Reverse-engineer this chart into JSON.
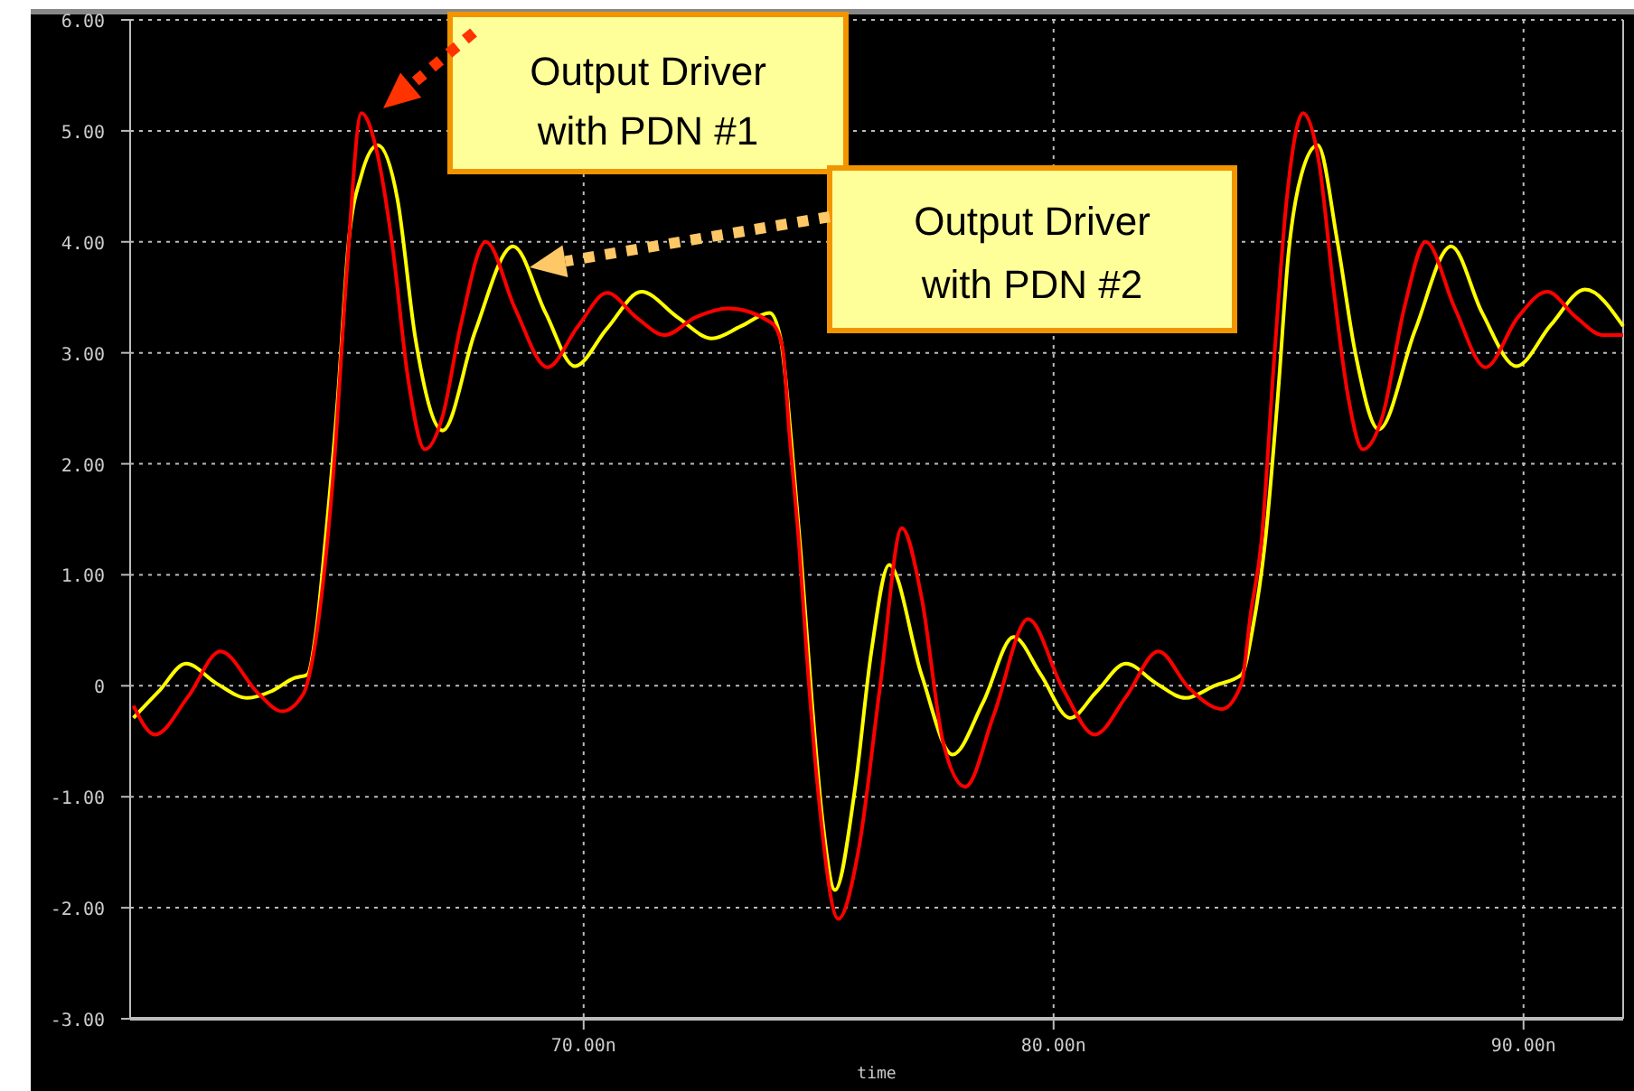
{
  "chart_data": {
    "type": "line",
    "xlabel": "time",
    "xlim": [
      60.35,
      92.12
    ],
    "ylim": [
      -3,
      6
    ],
    "xticks": [
      {
        "value": 70,
        "label": "70.00n"
      },
      {
        "value": 80,
        "label": "80.00n"
      },
      {
        "value": 90,
        "label": "90.00n"
      }
    ],
    "yticks": [
      {
        "value": 6,
        "label": "6.00"
      },
      {
        "value": 5,
        "label": "5.00"
      },
      {
        "value": 4,
        "label": "4.00"
      },
      {
        "value": 3,
        "label": "3.00"
      },
      {
        "value": 2,
        "label": "2.00"
      },
      {
        "value": 1,
        "label": "1.00"
      },
      0,
      {
        "value": -1,
        "label": "-1.00"
      },
      {
        "value": -2,
        "label": "-2.00"
      },
      {
        "value": -3,
        "label": "-3.00"
      }
    ],
    "grid": true,
    "marker": "none",
    "line_style": "solid",
    "series": [
      {
        "color": "#ffff00",
        "x": [
          60.42,
          60.96,
          61.54,
          62.19,
          62.85,
          63.35,
          63.85,
          64.12,
          64.31,
          64.5,
          64.77,
          65.0,
          65.27,
          65.62,
          66.04,
          66.42,
          67.0,
          67.69,
          68.5,
          69.19,
          69.81,
          70.5,
          71.23,
          72.0,
          72.73,
          73.35,
          73.96,
          74.19,
          74.42,
          74.62,
          74.85,
          75.08,
          75.35,
          75.77,
          76.12,
          76.5,
          77.19,
          77.85,
          78.5,
          79.15,
          79.73,
          80.35,
          80.92,
          81.54,
          82.19,
          82.81,
          83.42,
          84.0,
          84.23,
          84.5,
          84.77,
          85.0,
          85.27,
          85.62,
          86.04,
          86.42,
          86.92,
          87.69,
          88.46,
          89.12,
          89.85,
          90.58,
          91.31,
          92.12
        ],
        "values": [
          -0.29,
          -0.05,
          0.2,
          0.02,
          -0.11,
          -0.05,
          0.07,
          0.1,
          0.5,
          1.29,
          2.6,
          4.0,
          4.6,
          4.87,
          4.38,
          3.13,
          2.3,
          3.19,
          3.96,
          3.36,
          2.88,
          3.22,
          3.55,
          3.32,
          3.13,
          3.24,
          3.36,
          3.13,
          2.2,
          1.2,
          -0.1,
          -1.2,
          -1.84,
          -0.94,
          0.3,
          1.09,
          0.1,
          -0.62,
          -0.15,
          0.44,
          0.1,
          -0.29,
          -0.05,
          0.2,
          0.02,
          -0.11,
          0.0,
          0.1,
          0.5,
          1.29,
          2.6,
          3.9,
          4.6,
          4.87,
          4.0,
          3.0,
          2.31,
          3.2,
          3.96,
          3.36,
          2.88,
          3.25,
          3.57,
          3.24
        ]
      },
      {
        "color": "#ff0000",
        "x": [
          60.42,
          60.88,
          61.58,
          62.27,
          63.08,
          63.58,
          64.04,
          64.19,
          64.42,
          64.69,
          64.96,
          65.27,
          65.58,
          65.92,
          66.27,
          66.62,
          67.0,
          67.38,
          67.92,
          68.54,
          69.23,
          69.88,
          70.5,
          71.12,
          71.73,
          72.38,
          73.08,
          74.0,
          74.23,
          74.38,
          74.58,
          74.77,
          75.0,
          75.42,
          75.85,
          76.31,
          76.77,
          77.19,
          77.65,
          78.12,
          78.73,
          79.46,
          80.19,
          80.88,
          81.54,
          82.23,
          82.88,
          83.58,
          84.0,
          84.19,
          84.42,
          84.69,
          84.96,
          85.31,
          85.65,
          85.96,
          86.27,
          86.58,
          87.0,
          87.46,
          87.92,
          88.54,
          89.19,
          89.88,
          90.5,
          91.12,
          91.69,
          92.12
        ],
        "values": [
          -0.18,
          -0.44,
          -0.1,
          0.31,
          -0.07,
          -0.23,
          -0.07,
          0.15,
          0.8,
          2.0,
          3.73,
          5.16,
          4.85,
          4.0,
          2.75,
          2.13,
          2.43,
          3.24,
          4.0,
          3.4,
          2.87,
          3.24,
          3.54,
          3.32,
          3.16,
          3.32,
          3.4,
          3.27,
          3.05,
          2.26,
          1.29,
          0.15,
          -1.0,
          -2.1,
          -1.48,
          0.0,
          1.42,
          0.8,
          -0.51,
          -0.91,
          -0.26,
          0.6,
          -0.02,
          -0.44,
          -0.1,
          0.31,
          -0.02,
          -0.21,
          0.02,
          0.64,
          1.29,
          2.92,
          4.38,
          5.16,
          4.71,
          3.57,
          2.6,
          2.13,
          2.43,
          3.4,
          4.0,
          3.4,
          2.87,
          3.32,
          3.55,
          3.32,
          3.16,
          3.16
        ]
      }
    ],
    "annotations": [
      "Output Driver\nwith PDN #1",
      "Output Driver\nwith PDN #2"
    ]
  }
}
